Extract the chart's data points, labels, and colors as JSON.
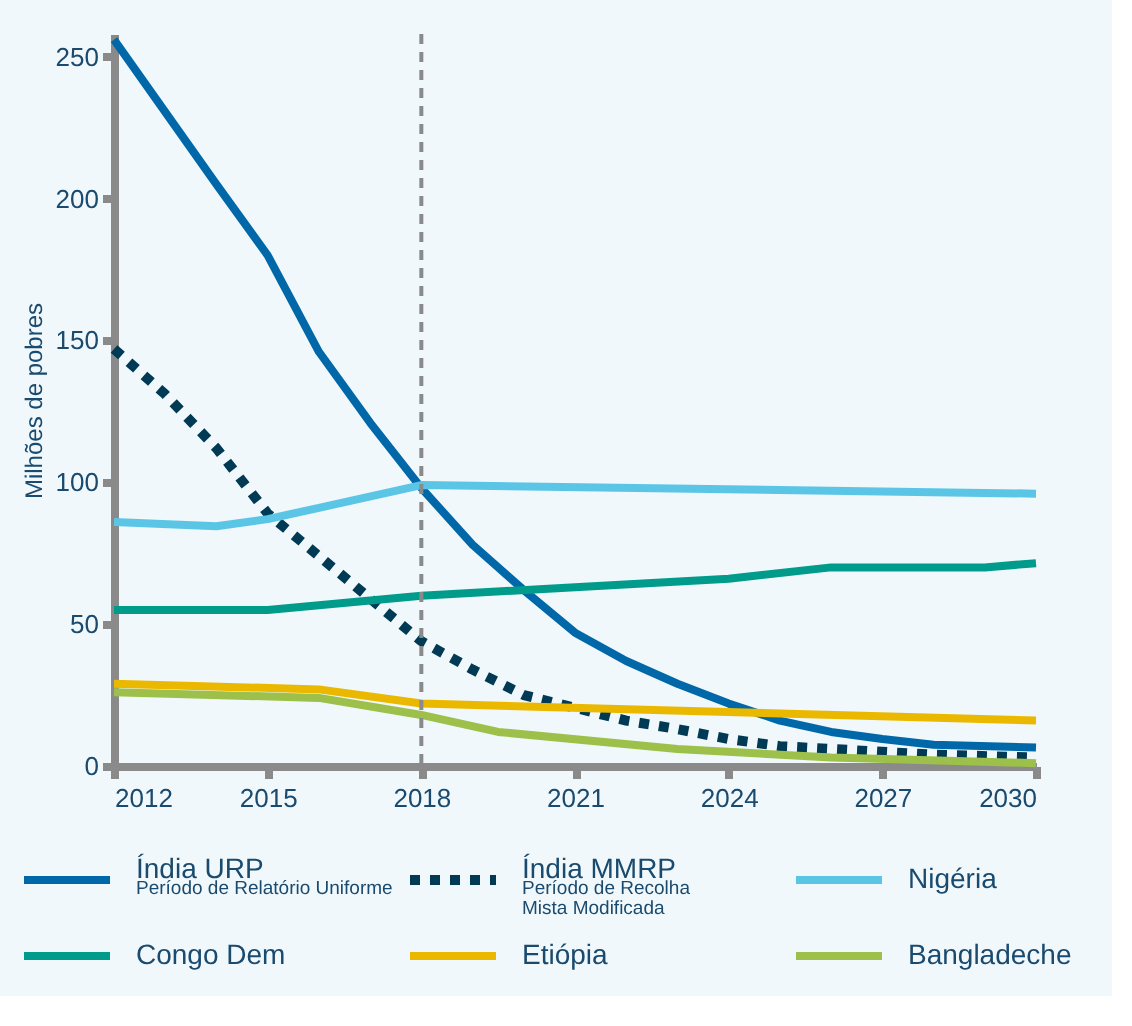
{
  "chart_data": {
    "type": "line",
    "ylabel": "Milhões de pobres",
    "xlim": [
      2012,
      2030
    ],
    "xticks": [
      2012,
      2015,
      2018,
      2021,
      2024,
      2027,
      2030
    ],
    "ylim": [
      0,
      258
    ],
    "yticks": [
      0,
      50,
      100,
      150,
      200,
      250
    ],
    "grid": false,
    "legend": "bottom",
    "line_style": "solid",
    "marker": "none",
    "series": [
      {
        "name": "Índia URP\nPeríodo de Relatório Uniforme",
        "color": "#0068a8",
        "x": [
          2012,
          2014,
          2015,
          2016,
          2017,
          2018,
          2019,
          2020,
          2021,
          2022,
          2023,
          2024,
          2025,
          2026,
          2027,
          2028,
          2030
        ],
        "values": [
          256,
          205,
          180,
          146,
          121,
          98,
          78,
          62,
          47,
          37,
          29,
          22,
          16,
          12,
          9.5,
          7.5,
          6.5
        ]
      },
      {
        "name": "Índia MMRP\nPeríodo de Recolha\nMista Modificada",
        "color": "#003a55",
        "line_style": "dotted",
        "x": [
          2012,
          2013,
          2014,
          2015,
          2016,
          2017,
          2018,
          2019,
          2020,
          2021,
          2022,
          2023,
          2024,
          2025,
          2026,
          2028,
          2030
        ],
        "values": [
          147,
          131,
          112,
          89,
          74,
          59,
          44,
          34,
          25,
          20.5,
          16,
          13,
          9.5,
          7,
          6,
          4,
          3
        ]
      },
      {
        "name": "Nigéria",
        "color": "#5bc5e6",
        "x": [
          2012,
          2014,
          2015,
          2016,
          2018,
          2030
        ],
        "values": [
          86,
          84.5,
          87,
          91,
          99,
          96
        ]
      },
      {
        "name": "Congo Dem",
        "color": "#009b8a",
        "x": [
          2012,
          2015,
          2018,
          2021,
          2024,
          2026,
          2029,
          2030
        ],
        "values": [
          55,
          55,
          60,
          63,
          66,
          70,
          70,
          71.5
        ]
      },
      {
        "name": "Etiópia",
        "color": "#ebb800",
        "x": [
          2012,
          2016,
          2018,
          2030
        ],
        "values": [
          29,
          27,
          22,
          16
        ]
      },
      {
        "name": "Bangladeche",
        "color": "#9cc04a",
        "x": [
          2012,
          2016,
          2018,
          2019.5,
          2023,
          2026,
          2030
        ],
        "values": [
          26,
          24,
          18,
          12,
          6,
          3,
          1
        ]
      }
    ],
    "ref_lines": [
      {
        "axis": "x",
        "value": 2018,
        "color": "#8a8a8a",
        "line_style": "dashed"
      }
    ]
  }
}
